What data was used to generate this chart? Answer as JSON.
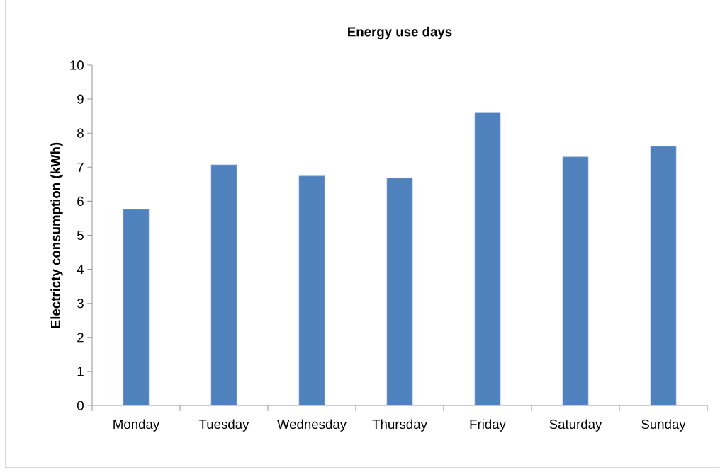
{
  "chart_data": {
    "type": "bar",
    "title": "Energy use days",
    "ylabel": "Electricty consumption (kWh)",
    "categories": [
      "Monday",
      "Tuesday",
      "Wednesday",
      "Thursday",
      "Friday",
      "Saturday",
      "Sunday"
    ],
    "values": [
      5.76,
      7.07,
      6.74,
      6.68,
      8.61,
      7.3,
      7.61
    ],
    "color": "#4f81bd",
    "ylim": [
      0,
      10
    ],
    "yticks": [
      0,
      1,
      2,
      3,
      4,
      5,
      6,
      7,
      8,
      9,
      10
    ],
    "grid": false
  }
}
